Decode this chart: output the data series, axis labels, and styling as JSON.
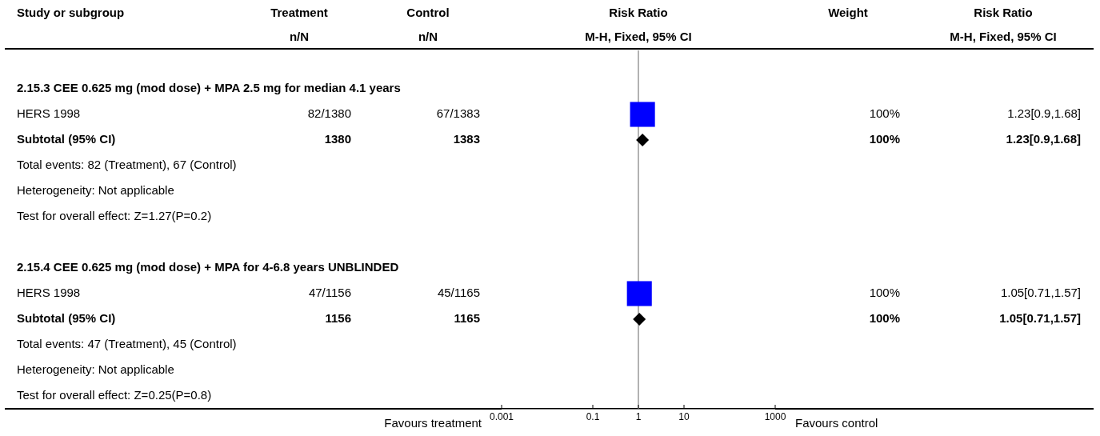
{
  "chart_data": {
    "type": "scatter",
    "title": "Risk Ratio",
    "subtitle": "M-H, Fixed, 95% CI",
    "y_categories": [
      null,
      "2.15.3 CEE 0.625 mg (mod dose) + MPA 2.5 mg for median 4.1 years",
      "HERS 1998",
      "Subtotal (95% CI)",
      "Total events: 82 (Treatment), 67 (Control)",
      "Heterogeneity: Not applicable",
      "Test for overall effect: Z=1.27(P=0.2)",
      null,
      "2.15.4 CEE 0.625 mg (mod dose) + MPA for 4-6.8 years UNBLINDED",
      "HERS 1998",
      "Subtotal (95% CI)",
      "Total events: 47 (Treatment), 45 (Control)",
      "Heterogeneity: Not applicable",
      "Test for overall effect: Z=0.25(P=0.8)"
    ],
    "orientation": "horizontal",
    "log": "x",
    "xlim": [
      0.001,
      1000
    ],
    "xticks": [
      0.001,
      0.1,
      1,
      10,
      1000
    ],
    "series": [
      {
        "type": "scatter",
        "marker": "square",
        "color": "#0000ff",
        "values": [
          null,
          null,
          1.23,
          null,
          null,
          null,
          null,
          null,
          null,
          1.05,
          null,
          null,
          null,
          null
        ]
      },
      {
        "type": "scatter",
        "marker": "diamond",
        "color": "#000000",
        "values": [
          null,
          null,
          null,
          1.23,
          null,
          null,
          null,
          null,
          null,
          null,
          1.05,
          null,
          null,
          null
        ]
      },
      {
        "type": "other",
        "name": "Treatment",
        "values": [
          null,
          null,
          null,
          null,
          null,
          null,
          null,
          null,
          null,
          null,
          null,
          null,
          null,
          null
        ],
        "value_labels": [
          null,
          null,
          "82/1380",
          "1380",
          null,
          null,
          null,
          null,
          null,
          "47/1156",
          "1156",
          null,
          null,
          null
        ]
      },
      {
        "type": "other",
        "name": "Control",
        "values": [
          null,
          null,
          null,
          null,
          null,
          null,
          null,
          null,
          null,
          null,
          null,
          null,
          null,
          null
        ],
        "value_labels": [
          null,
          null,
          "67/1383",
          "1383",
          null,
          null,
          null,
          null,
          null,
          "45/1165",
          "1165",
          null,
          null,
          null
        ]
      },
      {
        "type": "other",
        "name": "Weight",
        "values": [
          null,
          null,
          null,
          null,
          null,
          null,
          null,
          null,
          null,
          null,
          null,
          null,
          null,
          null
        ],
        "value_labels": [
          null,
          null,
          "100%",
          "100%",
          null,
          null,
          null,
          null,
          null,
          "100%",
          "100%",
          null,
          null,
          null
        ]
      },
      {
        "type": "other",
        "name": "Risk Ratio",
        "values": [
          null,
          null,
          null,
          null,
          null,
          null,
          null,
          null,
          null,
          null,
          null,
          null,
          null,
          null
        ],
        "value_labels": [
          null,
          null,
          "1.23[0.9,1.68]",
          "1.23[0.9,1.68]",
          null,
          null,
          null,
          null,
          null,
          "1.05[0.71,1.57]",
          "1.05[0.71,1.57]",
          null,
          null,
          null
        ]
      }
    ],
    "ref_lines": [
      {
        "axis": "x",
        "value": 1,
        "color": "#999999"
      }
    ],
    "annotations": [
      "Study or subgroup",
      "n/N",
      "n/N",
      "M-H, Fixed, 95% CI",
      "Favours treatment",
      "Favours control"
    ]
  }
}
